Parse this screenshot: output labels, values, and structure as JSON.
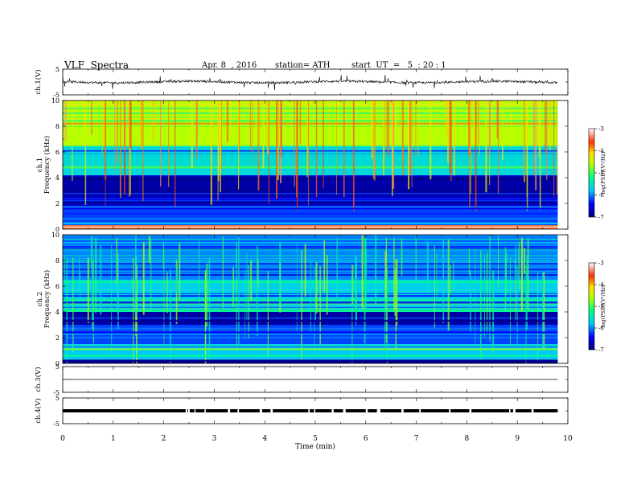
{
  "header": {
    "title": "VLF  Spectra",
    "date": "Apr. 8  , 2016",
    "station": "station= ATH",
    "start": "start  UT  =   5  : 20 : 1"
  },
  "chart_data": [
    {
      "type": "line",
      "ylabel": "ch.1(V)",
      "yticks": [
        "5",
        "-5"
      ],
      "ylim": [
        -5,
        5
      ],
      "description_of_signal": "noisy trace around 0 V with frequent spikes"
    },
    {
      "type": "heatmap",
      "ylabel_line1": "ch.1",
      "ylabel_line2": "Frequency  (kHz)",
      "yticks": [
        "0",
        "2",
        "4",
        "6",
        "8",
        "10"
      ],
      "ylim": [
        0,
        10
      ],
      "colorbar": {
        "label": "log(PSD)(V²/Hz)",
        "ticks": [
          "-3",
          "-4",
          "-5",
          "-6",
          "-7"
        ],
        "range": [
          -7,
          -3
        ]
      },
      "bands_kHz_logPSD": [
        {
          "from": 0,
          "to": 0.3,
          "value": -3.8
        },
        {
          "from": 0.3,
          "to": 1.8,
          "value": -6.2
        },
        {
          "from": 1.8,
          "to": 4.2,
          "value": -6.8
        },
        {
          "from": 4.2,
          "to": 6.5,
          "value": -5.6
        },
        {
          "from": 6.5,
          "to": 10,
          "value": -4.6
        }
      ]
    },
    {
      "type": "heatmap",
      "ylabel_line1": "ch.2",
      "ylabel_line2": "Frequency  (kHz)",
      "yticks": [
        "0",
        "2",
        "4",
        "6",
        "8",
        "10"
      ],
      "ylim": [
        0,
        10
      ],
      "colorbar": {
        "label": "log(PSD)(V²/Hz)",
        "ticks": [
          "-3",
          "-4",
          "-5",
          "-6",
          "-7"
        ],
        "range": [
          -7,
          -3
        ]
      },
      "bands_kHz_logPSD": [
        {
          "from": 0,
          "to": 0.3,
          "value": -6.9
        },
        {
          "from": 0.3,
          "to": 1.5,
          "value": -5.8
        },
        {
          "from": 1.5,
          "to": 3,
          "value": -6.2
        },
        {
          "from": 3,
          "to": 4,
          "value": -6.8
        },
        {
          "from": 4,
          "to": 6.5,
          "value": -5.7
        },
        {
          "from": 6.5,
          "to": 10,
          "value": -6.0
        }
      ]
    },
    {
      "type": "line",
      "ylabel": "ch.3(V)",
      "yticks": [
        "5",
        "-5"
      ],
      "ylim": [
        -5,
        5
      ],
      "description_of_signal": "flat line at 0 V"
    },
    {
      "type": "line",
      "ylabel": "ch.4(V)",
      "yticks": [
        "5",
        "-5"
      ],
      "ylim": [
        -5,
        5
      ],
      "description_of_signal": "thick band near 0 V with periodic gaps"
    }
  ],
  "xaxis": {
    "label": "Time  (min)",
    "ticks": [
      "0",
      "1",
      "2",
      "3",
      "4",
      "5",
      "6",
      "7",
      "8",
      "9",
      "10"
    ],
    "xlim": [
      0,
      10
    ],
    "data_end_min": 9.8
  }
}
